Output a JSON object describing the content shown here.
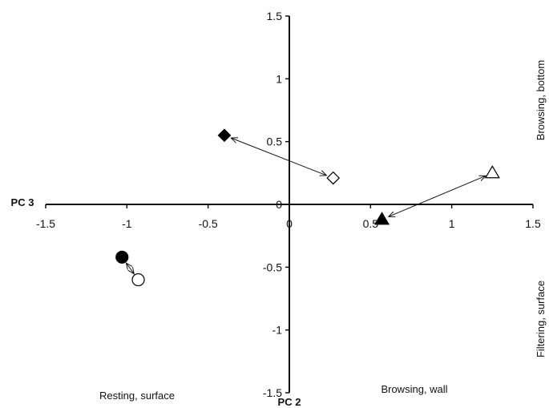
{
  "chart_data": {
    "type": "scatter",
    "title": "",
    "xlabel": "PC 3",
    "ylabel": "PC 2",
    "xlim": [
      -1.5,
      1.5
    ],
    "ylim": [
      -1.5,
      1.5
    ],
    "grid": false,
    "x_ticks": [
      {
        "value": -1.5,
        "label": "-1.5"
      },
      {
        "value": -1,
        "label": "-1"
      },
      {
        "value": -0.5,
        "label": "-0.5"
      },
      {
        "value": 0,
        "label": "0"
      },
      {
        "value": 0.5,
        "label": "0.5"
      },
      {
        "value": 1,
        "label": "1"
      },
      {
        "value": 1.5,
        "label": "1.5"
      }
    ],
    "y_ticks": [
      {
        "value": 1.5,
        "label": "1.5"
      },
      {
        "value": 1,
        "label": "1"
      },
      {
        "value": 0.5,
        "label": "0.5"
      },
      {
        "value": 0,
        "label": "0"
      },
      {
        "value": -0.5,
        "label": "-0.5"
      },
      {
        "value": -1,
        "label": "-1"
      },
      {
        "value": -1.5,
        "label": "-1.5"
      }
    ],
    "points": [
      {
        "marker": "diamond",
        "filled": true,
        "x": -0.4,
        "y": 0.55
      },
      {
        "marker": "diamond",
        "filled": false,
        "x": 0.27,
        "y": 0.21
      },
      {
        "marker": "triangle",
        "filled": true,
        "x": 0.57,
        "y": -0.12
      },
      {
        "marker": "triangle",
        "filled": false,
        "x": 1.25,
        "y": 0.25
      },
      {
        "marker": "circle",
        "filled": true,
        "x": -1.03,
        "y": -0.42
      },
      {
        "marker": "circle",
        "filled": false,
        "x": -0.93,
        "y": -0.6
      }
    ],
    "arrows": [
      {
        "from": [
          -0.4,
          0.55
        ],
        "to": [
          0.27,
          0.21
        ]
      },
      {
        "from": [
          0.57,
          -0.12
        ],
        "to": [
          1.25,
          0.25
        ]
      },
      {
        "from": [
          -1.03,
          -0.42
        ],
        "to": [
          -0.93,
          -0.6
        ]
      }
    ],
    "quadrant_labels": {
      "top_right": "Browsing, bottom",
      "bottom_right": "Filtering, surface",
      "bottom_left": "Resting, surface",
      "bottom_center": "Browsing, wall"
    }
  }
}
